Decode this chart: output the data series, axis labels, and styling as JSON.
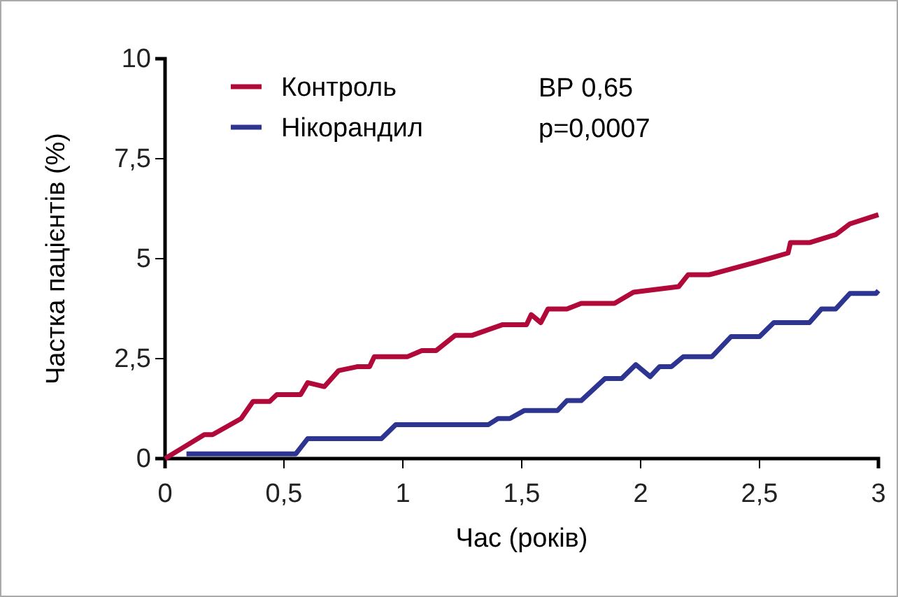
{
  "chart_data": {
    "type": "line",
    "xlabel": "Час (років)",
    "ylabel": "Частка пацієнтів (%)",
    "xlim": [
      0,
      3
    ],
    "ylim": [
      0,
      10
    ],
    "xticks": [
      0,
      {
        "value": 0.5,
        "label": "0,5"
      },
      1,
      {
        "value": 1.5,
        "label": "1,5"
      },
      2,
      {
        "value": 2.5,
        "label": "2,5"
      },
      3
    ],
    "yticks": [
      0,
      {
        "value": 2.5,
        "label": "2,5"
      },
      5,
      {
        "value": 7.5,
        "label": "7,5"
      },
      10
    ],
    "legend": "top left",
    "grid": false,
    "line_style": "solid",
    "marker": "none",
    "annotations": [
      "ВР 0,65",
      "p=0,0007"
    ],
    "series": [
      {
        "name": "Контроль",
        "color": "#b0093a",
        "x": [
          0,
          0.165,
          0.2,
          0.32,
          0.37,
          0.44,
          0.47,
          0.57,
          0.6,
          0.67,
          0.73,
          0.81,
          0.86,
          0.88,
          1.02,
          1.08,
          1.14,
          1.22,
          1.29,
          1.42,
          1.52,
          1.54,
          1.58,
          1.61,
          1.69,
          1.75,
          1.89,
          1.97,
          2.16,
          2.2,
          2.29,
          2.48,
          2.62,
          2.63,
          2.71,
          2.82,
          2.88,
          3.0
        ],
        "values": [
          0,
          0.6,
          0.6,
          1.0,
          1.43,
          1.43,
          1.6,
          1.6,
          1.9,
          1.8,
          2.2,
          2.3,
          2.3,
          2.55,
          2.55,
          2.7,
          2.7,
          3.08,
          3.08,
          3.35,
          3.35,
          3.6,
          3.4,
          3.74,
          3.74,
          3.88,
          3.88,
          4.16,
          4.3,
          4.6,
          4.6,
          4.9,
          5.14,
          5.4,
          5.4,
          5.6,
          5.87,
          6.1
        ]
      },
      {
        "name": "Нікорандил",
        "color": "#2e3590",
        "x": [
          0.09,
          0.55,
          0.6,
          0.91,
          0.97,
          1.36,
          1.4,
          1.45,
          1.51,
          1.65,
          1.69,
          1.75,
          1.85,
          1.92,
          1.98,
          2.04,
          2.08,
          2.13,
          2.18,
          2.3,
          2.38,
          2.5,
          2.56,
          2.71,
          2.76,
          2.82,
          2.88,
          2.99,
          3.0
        ],
        "values": [
          0.12,
          0.12,
          0.5,
          0.5,
          0.85,
          0.85,
          1.0,
          1.0,
          1.2,
          1.2,
          1.45,
          1.45,
          2.0,
          2.0,
          2.35,
          2.05,
          2.3,
          2.3,
          2.55,
          2.55,
          3.05,
          3.05,
          3.4,
          3.4,
          3.74,
          3.74,
          4.13,
          4.13,
          4.2
        ]
      }
    ]
  }
}
